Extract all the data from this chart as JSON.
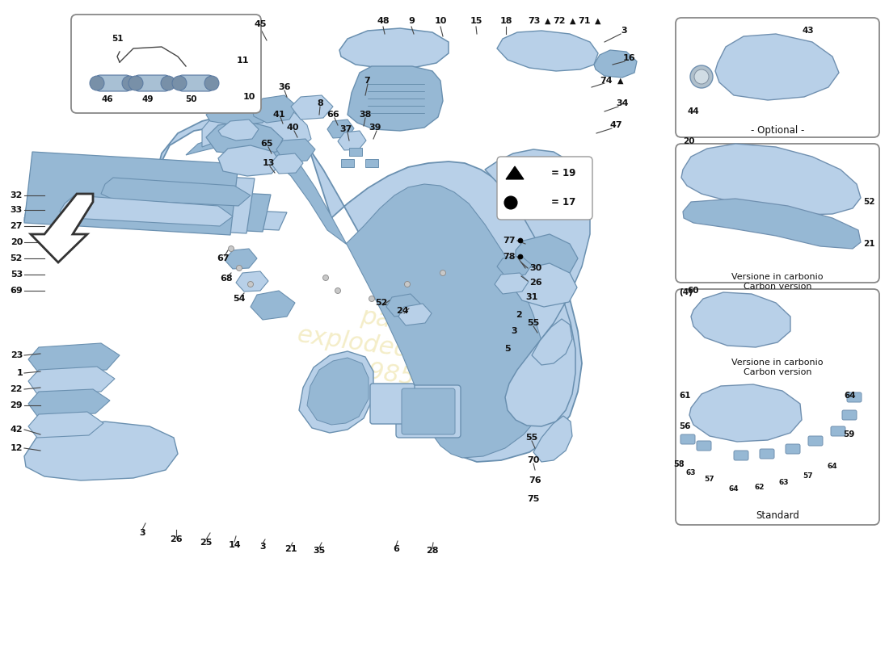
{
  "bg_color": "#ffffff",
  "part_blue_light": "#b8d0e8",
  "part_blue_mid": "#96b8d4",
  "part_blue_dark": "#7098b8",
  "edge_color": "#6a90b0",
  "line_color": "#333333",
  "box_border": "#aaaaaa",
  "watermark_color": "#e0cc60",
  "figsize": [
    11.0,
    8.0
  ],
  "dpi": 100,
  "optional_label": "- Optional -",
  "carbon_label": "Versione in carbonio\nCarbon version",
  "standard_label": "Standard"
}
